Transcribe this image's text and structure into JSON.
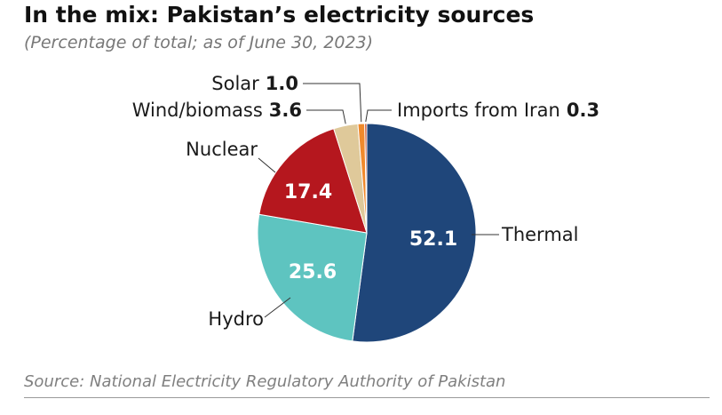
{
  "chart_data": {
    "type": "pie",
    "title": "In the mix: Pakistan’s electricity sources",
    "subtitle": "(Percentage of total; as of June 30, 2023)",
    "source": "Source: National Electricity Regulatory Authority of Pakistan",
    "start_angle_deg": 0,
    "direction": "clockwise",
    "slices": [
      {
        "label": "Thermal",
        "value": 52.1,
        "value_text": "52.1",
        "color": "#1f467a",
        "value_inside": true
      },
      {
        "label": "Hydro",
        "value": 25.6,
        "value_text": "25.6",
        "color": "#5ec4c0",
        "value_inside": true
      },
      {
        "label": "Nuclear",
        "value": 17.4,
        "value_text": "17.4",
        "color": "#b5171e",
        "value_inside": true
      },
      {
        "label": "Wind/biomass",
        "value": 3.6,
        "value_text": "3.6",
        "color": "#dfc99a",
        "value_inside": false
      },
      {
        "label": "Solar",
        "value": 1.0,
        "value_text": "1.0",
        "color": "#f08a2c",
        "value_inside": false
      },
      {
        "label": "Imports from Iran",
        "value": 0.3,
        "value_text": "0.3",
        "color": "#c8461e",
        "value_inside": false
      }
    ]
  }
}
